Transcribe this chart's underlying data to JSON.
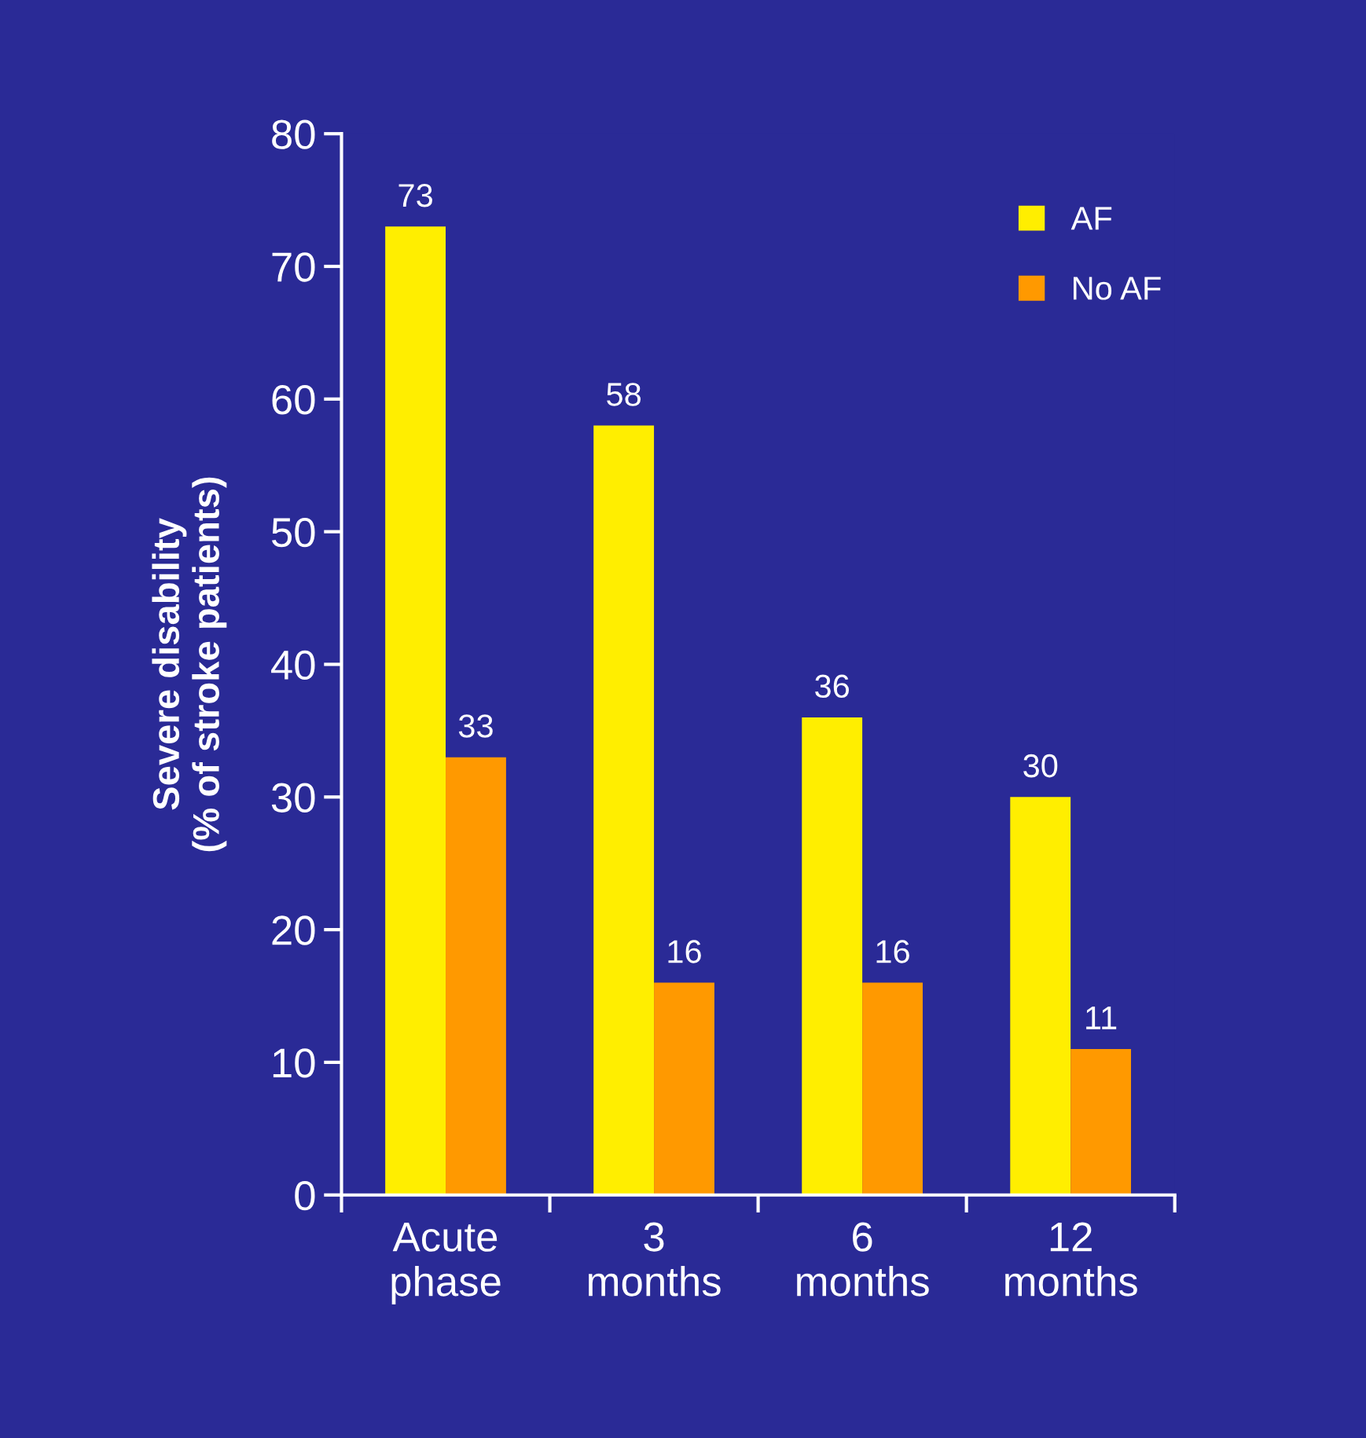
{
  "chart_data": {
    "type": "bar",
    "ylabel": "Severe disability\n(% of stroke patients)",
    "categories": [
      "Acute\nphase",
      "3\nmonths",
      "6\nmonths",
      "12\nmonths"
    ],
    "series": [
      {
        "name": "AF",
        "color": "#ffee00",
        "values": [
          73,
          58,
          36,
          30
        ]
      },
      {
        "name": "No AF",
        "color": "#ff9900",
        "values": [
          33,
          16,
          16,
          11
        ]
      }
    ],
    "ylim": [
      0,
      80
    ],
    "yticks": [
      0,
      10,
      20,
      30,
      40,
      50,
      60,
      70,
      80
    ],
    "data_labels": true,
    "legend": "top right",
    "grid": false
  }
}
